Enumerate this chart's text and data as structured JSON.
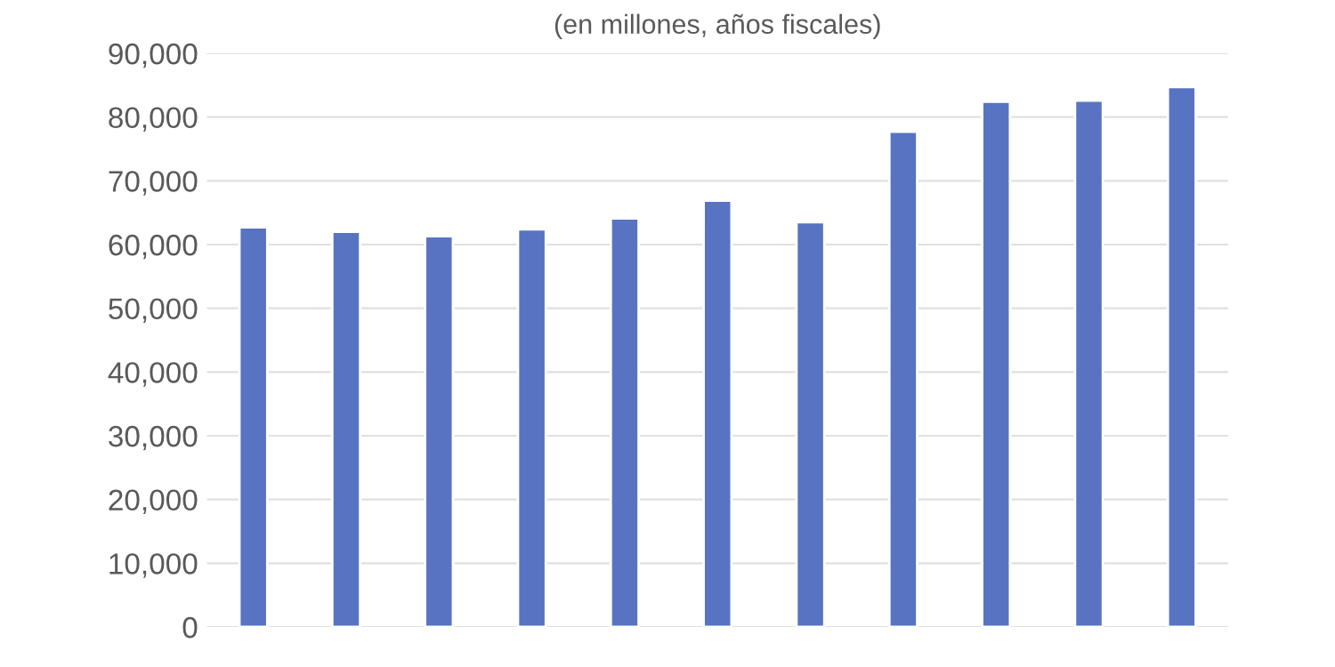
{
  "chart_data": {
    "type": "bar",
    "subtitle": "(en millones, años fiscales)",
    "categories": [
      null,
      null,
      null,
      null,
      null,
      null,
      null,
      null,
      null,
      null,
      null
    ],
    "series": [
      {
        "color": "#5873c1",
        "values": [
          62700,
          62000,
          61300,
          62400,
          64100,
          66900,
          63500,
          77700,
          82400,
          82600,
          84700
        ]
      }
    ],
    "ylim": [
      0,
      90000
    ],
    "yticks": [
      {
        "value": 0,
        "label": "0"
      },
      {
        "value": 10000,
        "label": "10,000"
      },
      {
        "value": 20000,
        "label": "20,000"
      },
      {
        "value": 30000,
        "label": "30,000"
      },
      {
        "value": 40000,
        "label": "40,000"
      },
      {
        "value": 50000,
        "label": "50,000"
      },
      {
        "value": 60000,
        "label": "60,000"
      },
      {
        "value": 70000,
        "label": "70,000"
      },
      {
        "value": 80000,
        "label": "80,000"
      },
      {
        "value": 90000,
        "label": "90,000"
      }
    ],
    "grid": "y",
    "tick_labels": "y"
  }
}
